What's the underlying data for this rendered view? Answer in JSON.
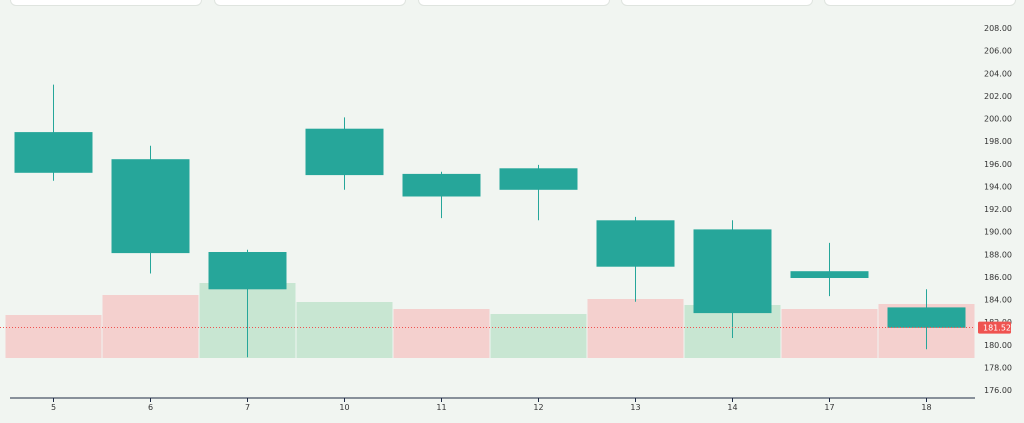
{
  "chart_data": {
    "type": "candlestick",
    "x": [
      "5",
      "6",
      "7",
      "10",
      "11",
      "12",
      "13",
      "14",
      "17",
      "18"
    ],
    "candles": [
      {
        "x": "5",
        "open": 195.2,
        "high": 203.0,
        "low": 194.5,
        "close": 198.8
      },
      {
        "x": "6",
        "open": 188.1,
        "high": 197.6,
        "low": 186.3,
        "close": 196.4
      },
      {
        "x": "7",
        "open": 184.9,
        "high": 188.4,
        "low": 178.9,
        "close": 188.2
      },
      {
        "x": "10",
        "open": 195.0,
        "high": 200.1,
        "low": 193.7,
        "close": 199.1
      },
      {
        "x": "11",
        "open": 193.1,
        "high": 195.3,
        "low": 191.2,
        "close": 195.1
      },
      {
        "x": "12",
        "open": 193.7,
        "high": 195.9,
        "low": 191.0,
        "close": 195.6
      },
      {
        "x": "13",
        "open": 186.9,
        "high": 191.3,
        "low": 183.8,
        "close": 191.0
      },
      {
        "x": "14",
        "open": 182.8,
        "high": 191.0,
        "low": 180.6,
        "close": 190.2
      },
      {
        "x": "17",
        "open": 185.9,
        "high": 189.0,
        "low": 184.3,
        "close": 186.5
      },
      {
        "x": "18",
        "open": 181.5,
        "high": 184.9,
        "low": 179.6,
        "close": 183.3
      }
    ],
    "volume_bars": [
      {
        "x": "5",
        "level": 0.43,
        "direction": "down"
      },
      {
        "x": "6",
        "level": 0.63,
        "direction": "down"
      },
      {
        "x": "7",
        "level": 0.75,
        "direction": "up"
      },
      {
        "x": "10",
        "level": 0.56,
        "direction": "up"
      },
      {
        "x": "11",
        "level": 0.49,
        "direction": "down"
      },
      {
        "x": "12",
        "level": 0.44,
        "direction": "up"
      },
      {
        "x": "13",
        "level": 0.59,
        "direction": "down"
      },
      {
        "x": "14",
        "level": 0.53,
        "direction": "up"
      },
      {
        "x": "17",
        "level": 0.49,
        "direction": "down"
      },
      {
        "x": "18",
        "level": 0.54,
        "direction": "down"
      }
    ],
    "y_ticks": [
      "208.00",
      "206.00",
      "204.00",
      "202.00",
      "200.00",
      "198.00",
      "196.00",
      "194.00",
      "192.00",
      "190.00",
      "188.00",
      "186.00",
      "184.00",
      "182.00",
      "180.00",
      "178.00",
      "176.00"
    ],
    "ylim": [
      175.0,
      209.0
    ],
    "last_price": {
      "value": 181.52,
      "label": "181.52"
    },
    "colors": {
      "up": "#26a69a",
      "down": "#ef5350",
      "volume_up": "#c8e6d2",
      "volume_down": "#f4d0ce",
      "price_line": "#ef5350",
      "axis": "#1f2a44"
    }
  },
  "top_cards": {
    "count": 5
  }
}
